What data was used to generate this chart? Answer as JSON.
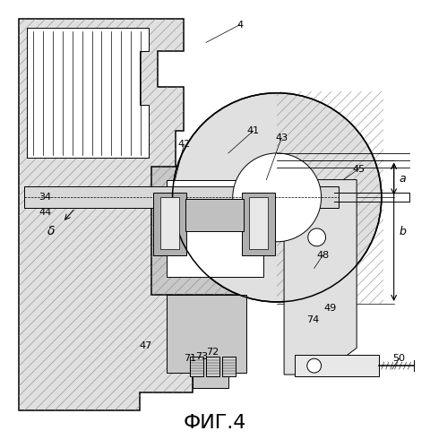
{
  "fig_label": "ФИГ.4",
  "fig_label_fontsize": 16,
  "background_color": "#ffffff",
  "line_color": "#000000",
  "hatch_color": "#888888",
  "light_gray": "#e0e0e0",
  "mid_gray": "#c8c8c8",
  "dark_gray": "#b0b0b0"
}
